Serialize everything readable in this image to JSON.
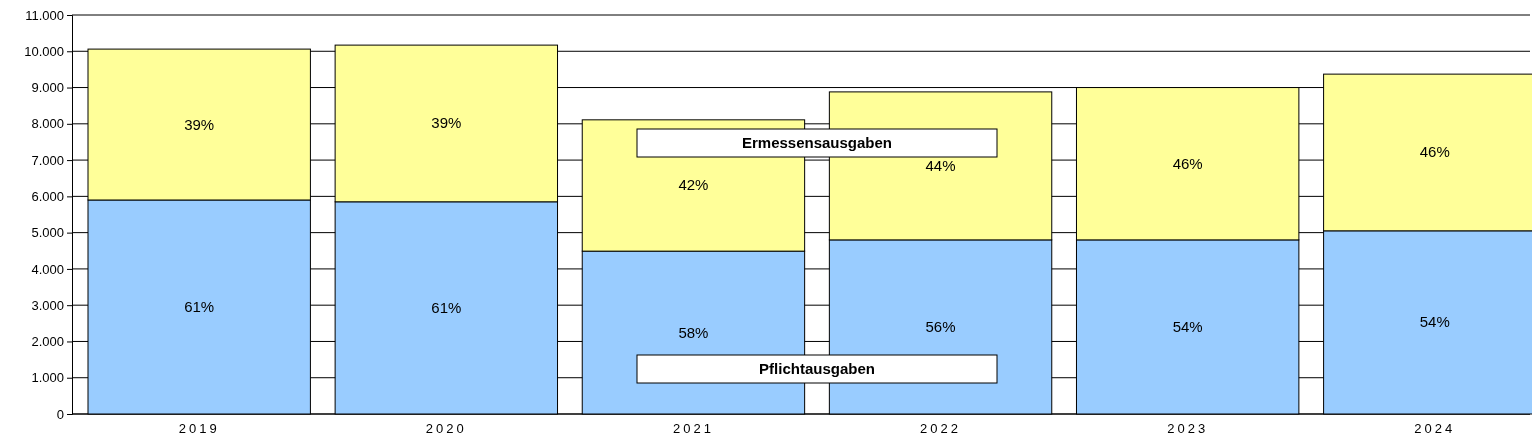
{
  "chart_data": {
    "type": "bar",
    "stacked": true,
    "categories": [
      "2019",
      "2020",
      "2021",
      "2022",
      "2023",
      "2024"
    ],
    "series": [
      {
        "name": "Pflichtausgaben",
        "color": "#99ccff",
        "values": [
          5900,
          5850,
          4490,
          4800,
          4800,
          5050
        ]
      },
      {
        "name": "Ermessensausgaben",
        "color": "#ffff99",
        "values": [
          4160,
          4320,
          3620,
          4080,
          4200,
          4320
        ]
      }
    ],
    "annotations": [
      "61%",
      "61%",
      "58%",
      "56%",
      "54%",
      "54%",
      "39%",
      "39%",
      "42%",
      "44%",
      "46%",
      "46%"
    ],
    "ylim": [
      0,
      11000
    ],
    "yticks": [
      {
        "value": 0,
        "label": "0"
      },
      {
        "value": 1000,
        "label": "1.000"
      },
      {
        "value": 2000,
        "label": "2.000"
      },
      {
        "value": 3000,
        "label": "3.000"
      },
      {
        "value": 4000,
        "label": "4.000"
      },
      {
        "value": 5000,
        "label": "5.000"
      },
      {
        "value": 6000,
        "label": "6.000"
      },
      {
        "value": 7000,
        "label": "7.000"
      },
      {
        "value": 8000,
        "label": "8.000"
      },
      {
        "value": 9000,
        "label": "9.000"
      },
      {
        "value": 10000,
        "label": "10.000"
      },
      {
        "value": 11000,
        "label": "11.000"
      }
    ],
    "grid": "y"
  }
}
